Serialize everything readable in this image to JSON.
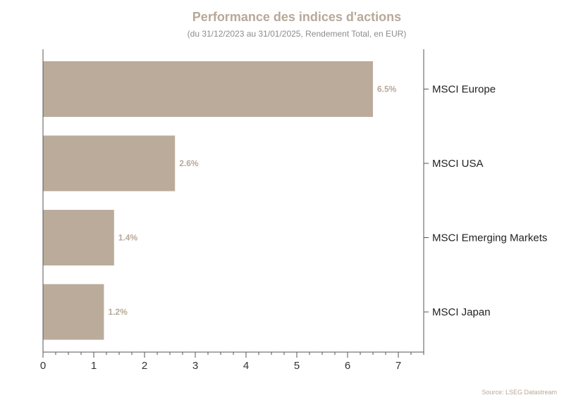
{
  "chart_data": {
    "type": "bar",
    "orientation": "horizontal",
    "title": "Performance des indices d'actions",
    "subtitle": "(du 31/12/2023 au 31/01/2025, Rendement Total, en EUR)",
    "categories": [
      "MSCI Europe",
      "MSCI USA",
      "MSCI Emerging Markets",
      "MSCI Japan"
    ],
    "values": [
      6.5,
      2.6,
      1.4,
      1.2
    ],
    "data_labels": [
      "6.5%",
      "2.6%",
      "1.4%",
      "1.2%"
    ],
    "xlim": [
      0,
      7.5
    ],
    "xticks": [
      0,
      1,
      2,
      3,
      4,
      5,
      6,
      7
    ],
    "category_axis_position": "right",
    "grid": false,
    "bar_color": "#bbab9b",
    "source": "Source: LSEG Datastream"
  }
}
